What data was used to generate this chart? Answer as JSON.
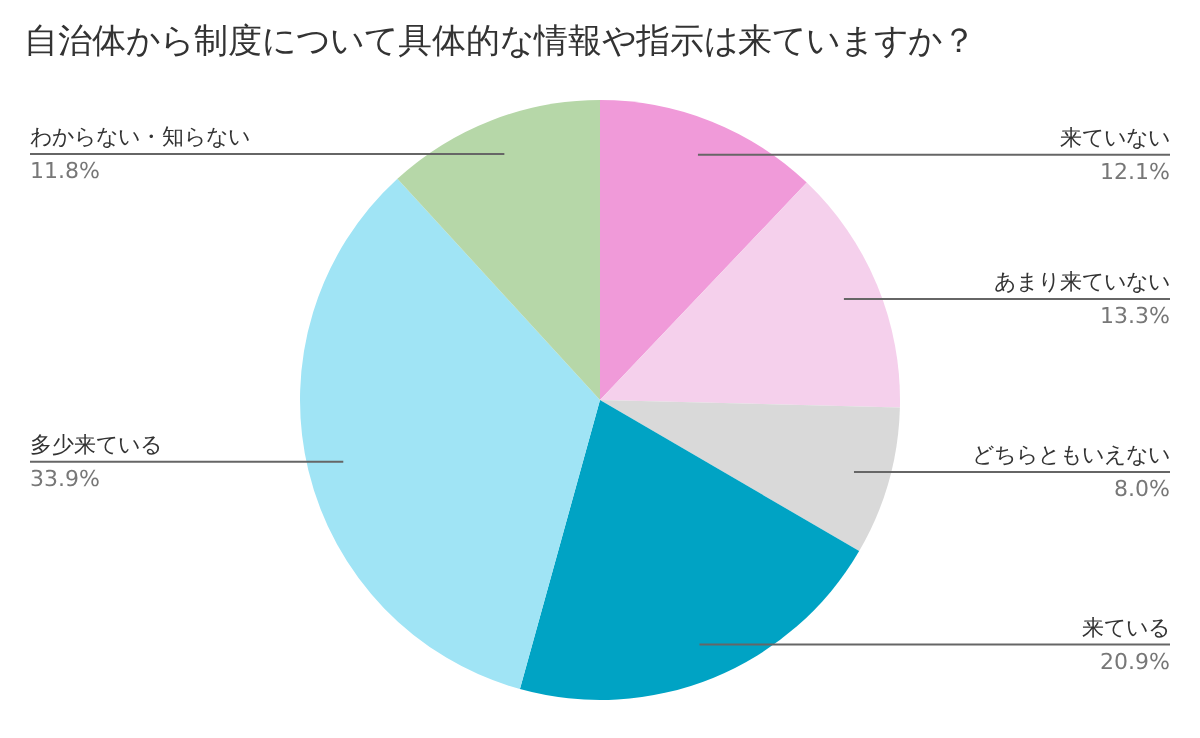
{
  "chart_data": {
    "type": "pie",
    "title": "自治体から制度について具体的な情報や指示は来ていますか？",
    "categories": [
      "来ていない",
      "あまり来ていない",
      "どちらともいえない",
      "来ている",
      "多少来ている",
      "わからない・知らない"
    ],
    "values": [
      12.1,
      13.3,
      8.0,
      20.9,
      33.9,
      11.8
    ],
    "colors": [
      "#f09ad9",
      "#f5d0ec",
      "#d9d9d9",
      "#00a3c4",
      "#a0e4f5",
      "#b6d7a8"
    ],
    "value_labels": [
      "12.1%",
      "13.3%",
      "8.0%",
      "20.9%",
      "33.9%",
      "11.8%"
    ]
  }
}
